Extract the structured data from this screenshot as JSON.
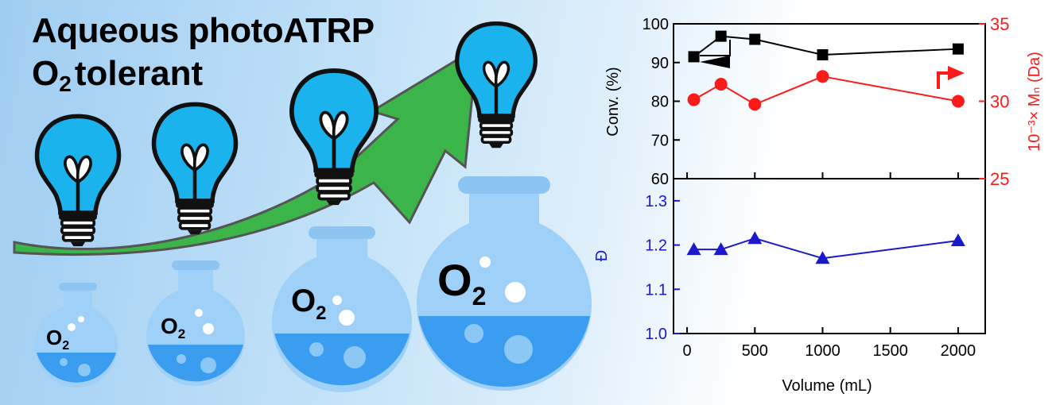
{
  "headline": {
    "line1": "Aqueous photoATRP",
    "o2": "O",
    "o2_sub": "2",
    "line2_rest": "tolerant"
  },
  "flask_labels": [
    "O",
    "O",
    "O",
    "O"
  ],
  "flask_label_sub": "2",
  "colors": {
    "bulb": "#1ab3ee",
    "arrow": "#3bb54a",
    "liquid": "#3a9df0",
    "flask": "#9ed0f8",
    "conv_series": "#000000",
    "mn_series": "#ff1a1a",
    "dispersity_series": "#1a1acc"
  },
  "chart_data": [
    {
      "type": "line",
      "panel": "top",
      "ylabel_left": "Conv. (%)",
      "ylabel_right": "10⁻³× Mₙ (Da)",
      "ylim_left": [
        60,
        100
      ],
      "ylim_right": [
        25,
        35
      ],
      "yticks_left": [
        "60",
        "70",
        "80",
        "90",
        "100"
      ],
      "yticks_right": [
        "25",
        "30",
        "35"
      ],
      "series": [
        {
          "axis": "left",
          "marker": "square",
          "color": "#000000",
          "x": [
            50,
            250,
            500,
            1000,
            2000
          ],
          "y": [
            91.5,
            96.8,
            96.0,
            92.0,
            93.5
          ]
        },
        {
          "axis": "right",
          "marker": "circle",
          "color": "#ff1a1a",
          "x": [
            50,
            250,
            500,
            1000,
            2000
          ],
          "y": [
            30.1,
            31.1,
            29.8,
            31.6,
            30.0
          ]
        }
      ]
    },
    {
      "type": "line",
      "panel": "bottom",
      "xlabel": "Volume (mL)",
      "ylabel": "Đ",
      "xlim": [
        -100,
        2200
      ],
      "ylim": [
        1.0,
        1.35
      ],
      "xticks": [
        "0",
        "500",
        "1000",
        "1500",
        "2000"
      ],
      "yticks": [
        "1.0",
        "1.1",
        "1.2",
        "1.3"
      ],
      "series": [
        {
          "marker": "triangle",
          "color": "#1a1acc",
          "x": [
            50,
            250,
            500,
            1000,
            2000
          ],
          "y": [
            1.19,
            1.19,
            1.215,
            1.17,
            1.21
          ]
        }
      ]
    }
  ]
}
